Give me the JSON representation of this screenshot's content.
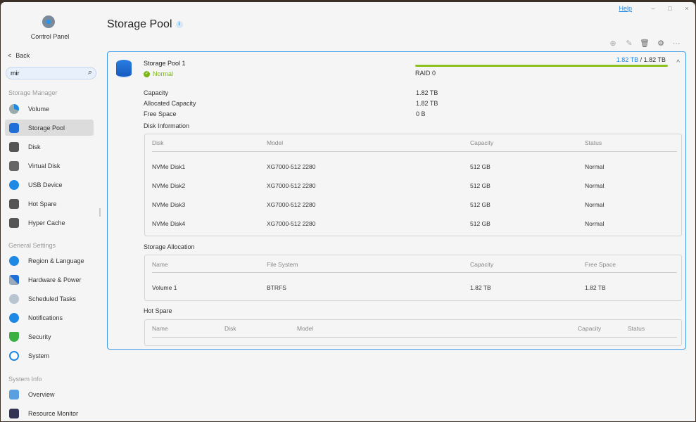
{
  "window": {
    "help": "Help",
    "minimize": "–",
    "maximize": "□",
    "close": "×"
  },
  "sidebar": {
    "app_title": "Control Panel",
    "back": "Back",
    "search_value": "mir",
    "sections": [
      {
        "title": "Storage Manager",
        "items": [
          {
            "label": "Volume",
            "icon": "volume-icon"
          },
          {
            "label": "Storage Pool",
            "icon": "storage-pool-icon",
            "active": true
          },
          {
            "label": "Disk",
            "icon": "disk-icon"
          },
          {
            "label": "Virtual Disk",
            "icon": "virtual-disk-icon"
          },
          {
            "label": "USB Device",
            "icon": "usb-icon"
          },
          {
            "label": "Hot Spare",
            "icon": "hot-spare-icon"
          },
          {
            "label": "Hyper Cache",
            "icon": "hyper-cache-icon"
          }
        ]
      },
      {
        "title": "General Settings",
        "items": [
          {
            "label": "Region & Language",
            "icon": "globe-icon"
          },
          {
            "label": "Hardware & Power",
            "icon": "tools-icon"
          },
          {
            "label": "Scheduled Tasks",
            "icon": "tasks-icon"
          },
          {
            "label": "Notifications",
            "icon": "chat-icon"
          },
          {
            "label": "Security",
            "icon": "shield-lock-icon"
          },
          {
            "label": "System",
            "icon": "system-icon"
          }
        ]
      },
      {
        "title": "System Info",
        "items": [
          {
            "label": "Overview",
            "icon": "monitor-icon"
          },
          {
            "label": "Resource Monitor",
            "icon": "resource-monitor-icon"
          }
        ]
      }
    ]
  },
  "main": {
    "title": "Storage Pool",
    "toolbar": [
      "add-icon",
      "edit-icon",
      "trash-icon",
      "gear-icon",
      "more-icon"
    ],
    "pool": {
      "name": "Storage Pool 1",
      "status": "Normal",
      "used": "1.82 TB",
      "separator": "/",
      "total": "1.82 TB",
      "usage_percent": 100,
      "raid": "RAID 0",
      "details": [
        {
          "label": "Capacity",
          "value": "1.82 TB"
        },
        {
          "label": "Allocated Capacity",
          "value": "1.82 TB"
        },
        {
          "label": "Free Space",
          "value": "0 B"
        }
      ],
      "disk_info": {
        "title": "Disk Information",
        "columns": [
          "Disk",
          "Model",
          "Capacity",
          "Status"
        ],
        "rows": [
          [
            "NVMe Disk1",
            "XG7000-512 2280",
            "512 GB",
            "Normal"
          ],
          [
            "NVMe Disk2",
            "XG7000-512 2280",
            "512 GB",
            "Normal"
          ],
          [
            "NVMe Disk3",
            "XG7000-512 2280",
            "512 GB",
            "Normal"
          ],
          [
            "NVMe Disk4",
            "XG7000-512 2280",
            "512 GB",
            "Normal"
          ]
        ]
      },
      "allocation": {
        "title": "Storage Allocation",
        "columns": [
          "Name",
          "File System",
          "Capacity",
          "Free Space"
        ],
        "rows": [
          [
            "Volume 1",
            "BTRFS",
            "1.82 TB",
            "1.82 TB"
          ]
        ]
      },
      "hot_spare": {
        "title": "Hot Spare",
        "columns": [
          "Name",
          "Disk",
          "Model",
          "Capacity",
          "Status"
        ],
        "rows": []
      }
    }
  },
  "colors": {
    "accent": "#1e88e5",
    "ok": "#7cb518",
    "bar": "#8cc01c"
  }
}
